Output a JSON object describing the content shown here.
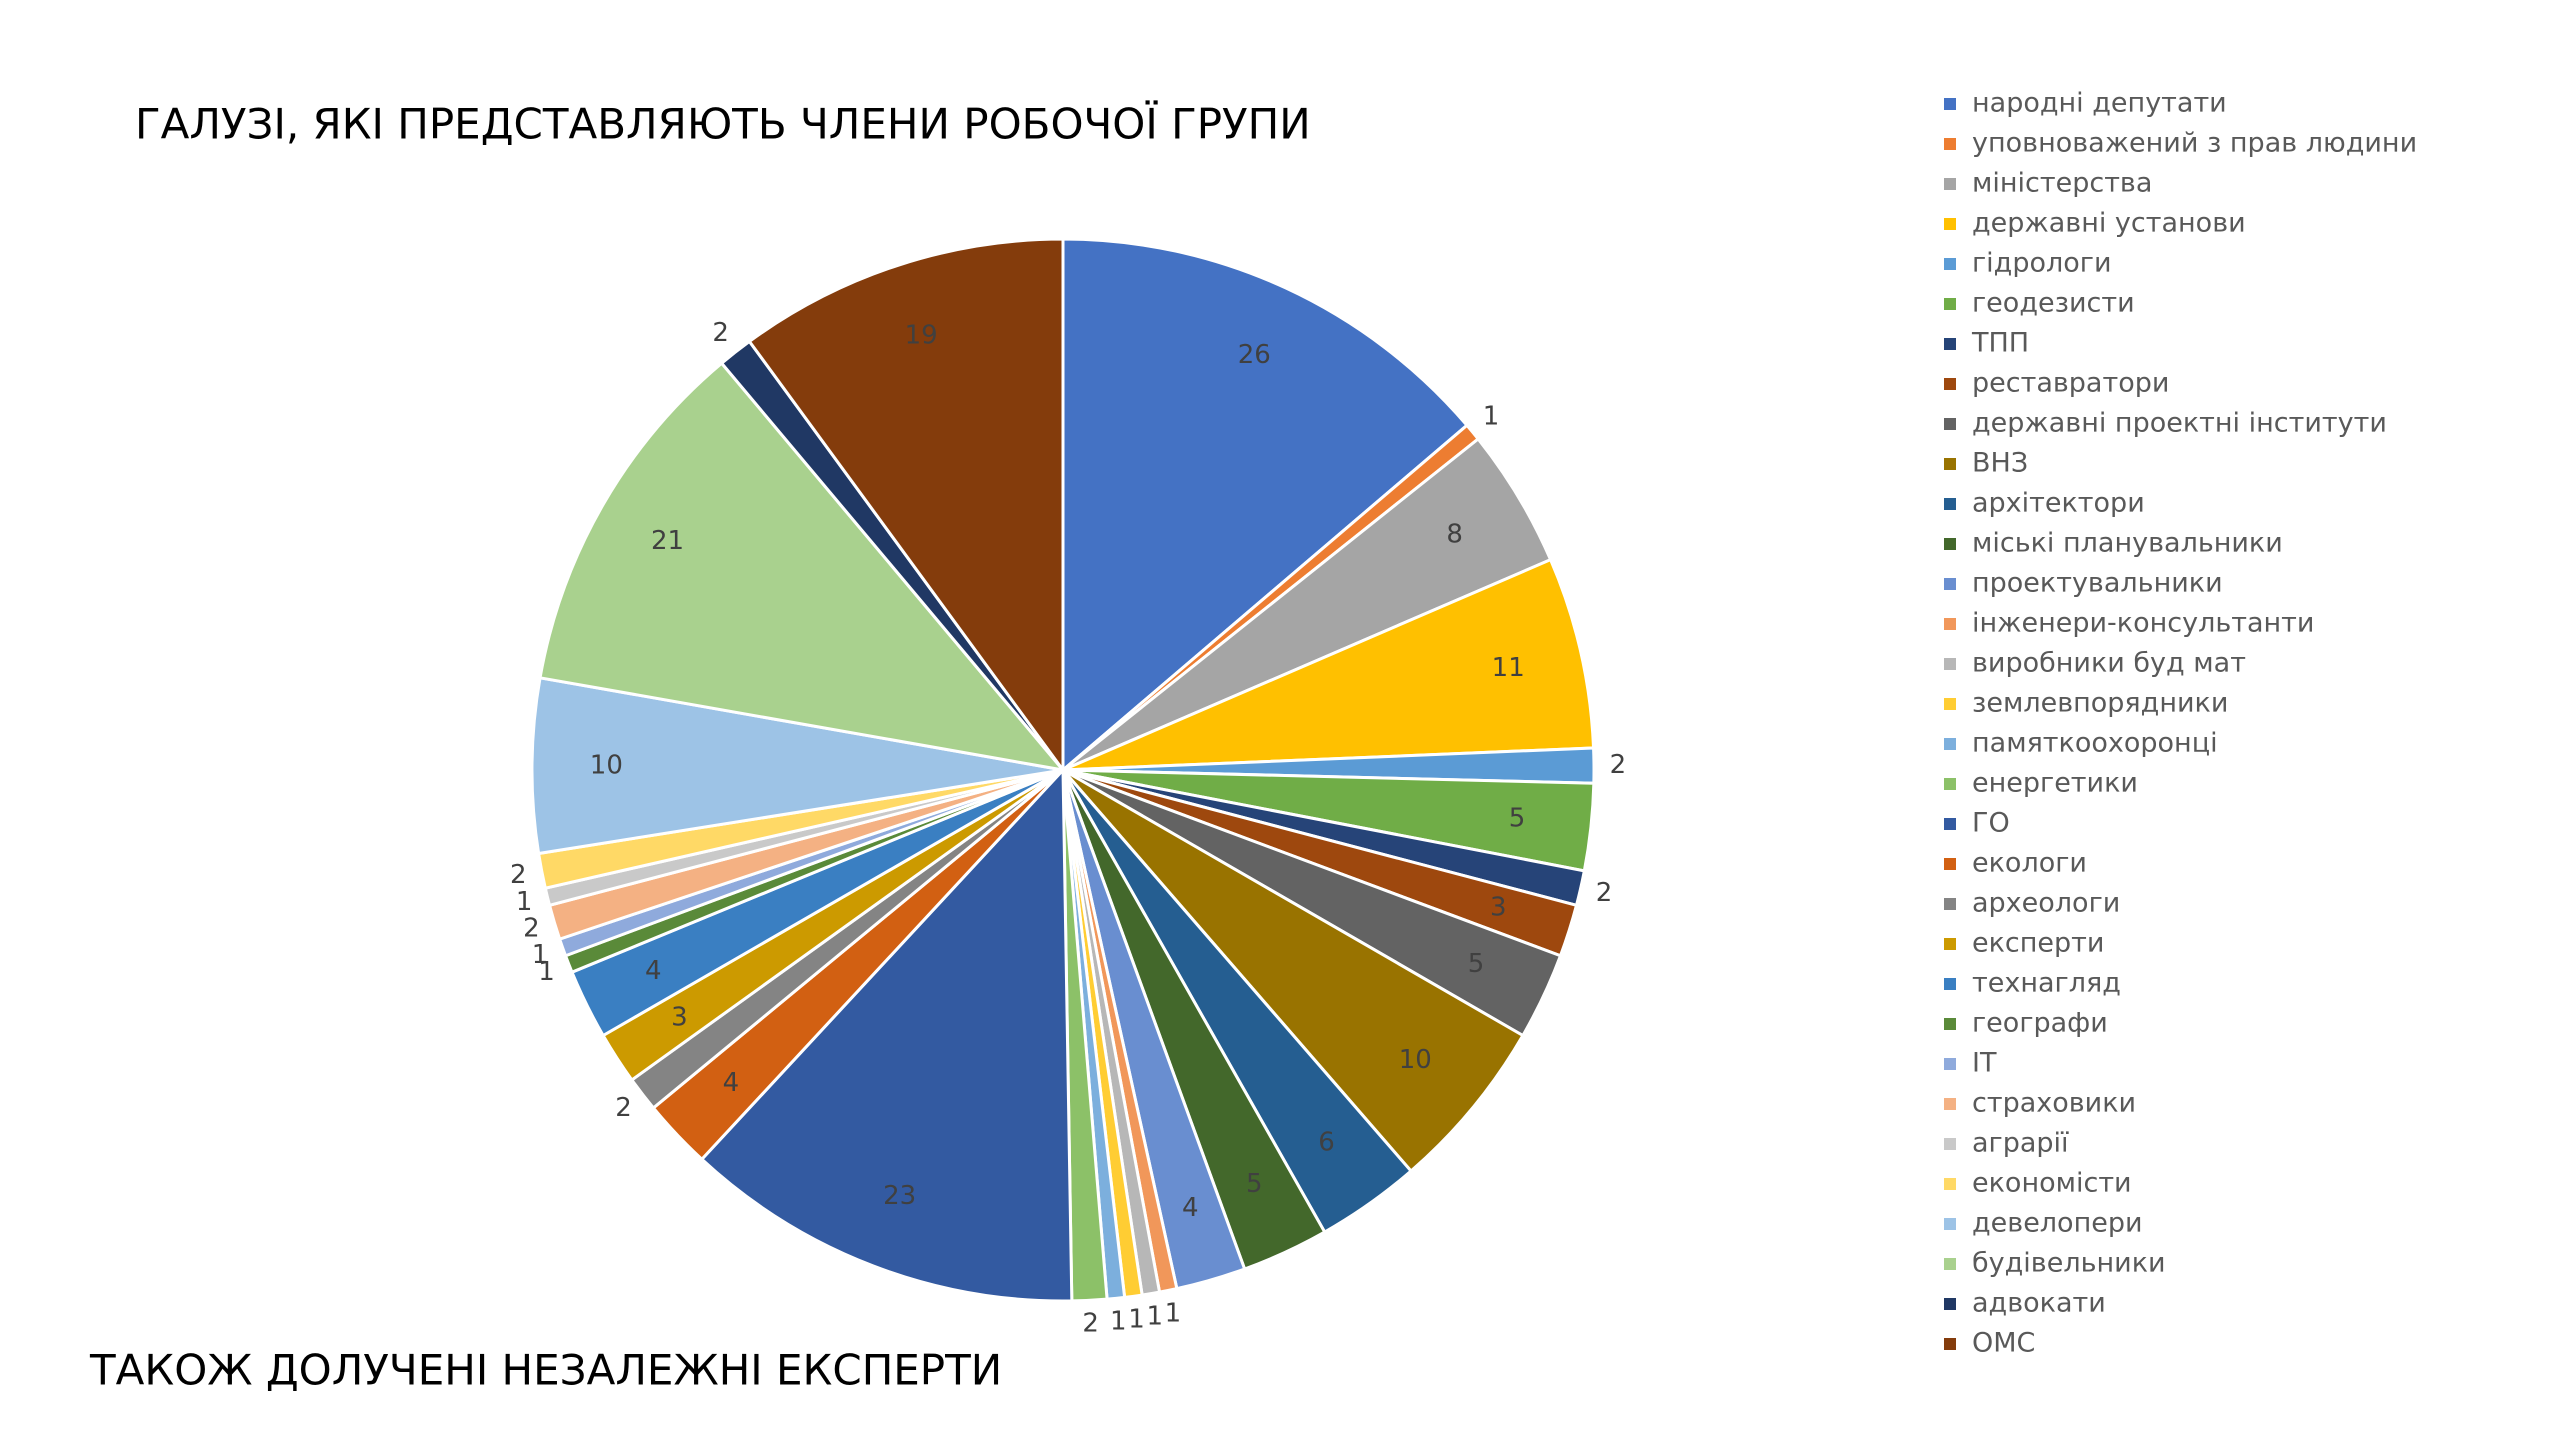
{
  "chart_data": {
    "type": "pie",
    "title": "ГАЛУЗІ, ЯКІ ПРЕДСТАВЛЯЮТЬ ЧЛЕНИ РОБОЧОЇ ГРУПИ",
    "footnote": "ТАКОЖ ДОЛУЧЕНІ НЕЗАЛЕЖНІ ЕКСПЕРТИ",
    "legend": "right",
    "categories": [
      "народні депутати",
      "уповноважений з прав людини",
      "міністерства",
      "державні установи",
      "гідрологи",
      "геодезисти",
      "ТПП",
      "реставратори",
      "державні проектні інститути",
      "ВНЗ",
      "архітектори",
      "міські планувальники",
      "проектувальники",
      "інженери-консультанти",
      "виробники буд мат",
      "землевпорядники",
      "памяткоохоронці",
      "енергетики",
      "ГО",
      "екологи",
      "археологи",
      "експерти",
      "технагляд",
      "географи",
      "ІТ",
      "страховики",
      "аграрії",
      "економісти",
      "девелопери",
      "будівельники",
      "адвокати",
      "ОМС"
    ],
    "values": [
      26,
      1,
      8,
      11,
      2,
      5,
      2,
      3,
      5,
      10,
      6,
      5,
      4,
      1,
      1,
      1,
      1,
      2,
      23,
      4,
      2,
      3,
      4,
      1,
      1,
      2,
      1,
      2,
      10,
      21,
      2,
      19
    ],
    "colors": [
      "#4472C4",
      "#ED7D31",
      "#A5A5A5",
      "#FFC000",
      "#5B9BD5",
      "#70AD47",
      "#264478",
      "#9E480E",
      "#636363",
      "#997300",
      "#255E91",
      "#43682B",
      "#698ED0",
      "#F1975A",
      "#B7B7B7",
      "#FFCD33",
      "#7CAFDD",
      "#8CC168",
      "#335AA1",
      "#D26012",
      "#848484",
      "#CC9A00",
      "#3A7FC2",
      "#5A8A39",
      "#8FAADC",
      "#F4B183",
      "#C9C9C9",
      "#FFD966",
      "#9DC3E6",
      "#A9D18E",
      "#203864",
      "#843C0C"
    ]
  }
}
